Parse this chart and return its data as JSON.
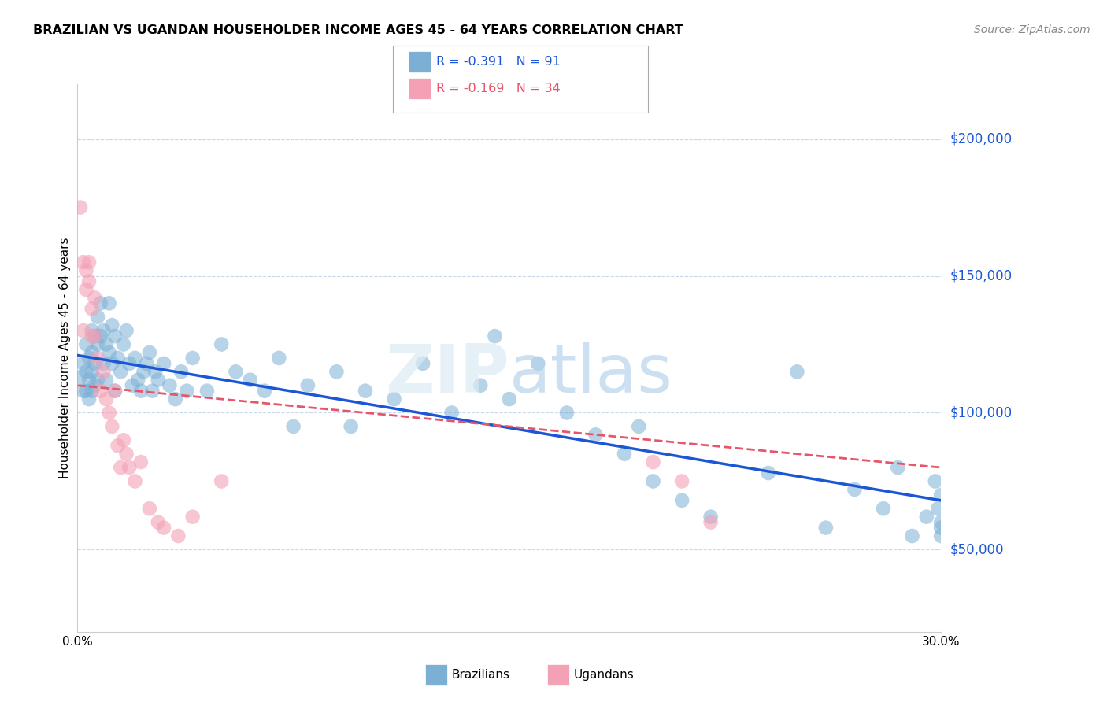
{
  "title": "BRAZILIAN VS UGANDAN HOUSEHOLDER INCOME AGES 45 - 64 YEARS CORRELATION CHART",
  "source": "Source: ZipAtlas.com",
  "ylabel": "Householder Income Ages 45 - 64 years",
  "xlim": [
    0.0,
    0.3
  ],
  "ylim": [
    20000,
    220000
  ],
  "yticks": [
    50000,
    100000,
    150000,
    200000
  ],
  "ytick_labels": [
    "$50,000",
    "$100,000",
    "$150,000",
    "$200,000"
  ],
  "xticks": [
    0.0,
    0.05,
    0.1,
    0.15,
    0.2,
    0.25,
    0.3
  ],
  "xtick_labels": [
    "0.0%",
    "",
    "",
    "",
    "",
    "",
    "30.0%"
  ],
  "blue_R": -0.391,
  "blue_N": 91,
  "pink_R": -0.169,
  "pink_N": 34,
  "blue_color": "#7BAfd4",
  "pink_color": "#F4A0B5",
  "blue_line_color": "#1a56d6",
  "pink_line_color": "#e8556a",
  "grid_color": "#c8d8e8",
  "background_color": "#ffffff",
  "blue_points_x": [
    0.001,
    0.002,
    0.002,
    0.003,
    0.003,
    0.003,
    0.004,
    0.004,
    0.004,
    0.005,
    0.005,
    0.005,
    0.005,
    0.006,
    0.006,
    0.006,
    0.007,
    0.007,
    0.007,
    0.008,
    0.008,
    0.009,
    0.009,
    0.01,
    0.01,
    0.011,
    0.011,
    0.012,
    0.012,
    0.013,
    0.013,
    0.014,
    0.015,
    0.016,
    0.017,
    0.018,
    0.019,
    0.02,
    0.021,
    0.022,
    0.023,
    0.024,
    0.025,
    0.026,
    0.027,
    0.028,
    0.03,
    0.032,
    0.034,
    0.036,
    0.038,
    0.04,
    0.045,
    0.05,
    0.055,
    0.06,
    0.065,
    0.07,
    0.075,
    0.08,
    0.09,
    0.095,
    0.1,
    0.11,
    0.12,
    0.13,
    0.14,
    0.145,
    0.15,
    0.16,
    0.17,
    0.18,
    0.19,
    0.195,
    0.2,
    0.21,
    0.22,
    0.24,
    0.25,
    0.26,
    0.27,
    0.28,
    0.285,
    0.29,
    0.295,
    0.298,
    0.299,
    0.3,
    0.3,
    0.3,
    0.3
  ],
  "blue_points_y": [
    113000,
    118000,
    108000,
    125000,
    115000,
    108000,
    120000,
    112000,
    105000,
    130000,
    122000,
    115000,
    108000,
    128000,
    118000,
    110000,
    135000,
    125000,
    112000,
    140000,
    128000,
    130000,
    118000,
    125000,
    112000,
    140000,
    122000,
    132000,
    118000,
    128000,
    108000,
    120000,
    115000,
    125000,
    130000,
    118000,
    110000,
    120000,
    112000,
    108000,
    115000,
    118000,
    122000,
    108000,
    115000,
    112000,
    118000,
    110000,
    105000,
    115000,
    108000,
    120000,
    108000,
    125000,
    115000,
    112000,
    108000,
    120000,
    95000,
    110000,
    115000,
    95000,
    108000,
    105000,
    118000,
    100000,
    110000,
    128000,
    105000,
    118000,
    100000,
    92000,
    85000,
    95000,
    75000,
    68000,
    62000,
    78000,
    115000,
    58000,
    72000,
    65000,
    80000,
    55000,
    62000,
    75000,
    65000,
    70000,
    55000,
    58000,
    60000
  ],
  "pink_points_x": [
    0.001,
    0.002,
    0.002,
    0.003,
    0.003,
    0.004,
    0.004,
    0.005,
    0.005,
    0.006,
    0.006,
    0.007,
    0.008,
    0.009,
    0.01,
    0.011,
    0.012,
    0.013,
    0.014,
    0.015,
    0.016,
    0.017,
    0.018,
    0.02,
    0.022,
    0.025,
    0.028,
    0.03,
    0.035,
    0.04,
    0.05,
    0.2,
    0.21,
    0.22
  ],
  "pink_points_y": [
    175000,
    155000,
    130000,
    152000,
    145000,
    155000,
    148000,
    138000,
    128000,
    142000,
    128000,
    120000,
    108000,
    115000,
    105000,
    100000,
    95000,
    108000,
    88000,
    80000,
    90000,
    85000,
    80000,
    75000,
    82000,
    65000,
    60000,
    58000,
    55000,
    62000,
    75000,
    82000,
    75000,
    60000
  ],
  "blue_line_x0": 0.0,
  "blue_line_y0": 121000,
  "blue_line_x1": 0.3,
  "blue_line_y1": 68000,
  "pink_line_x0": 0.0,
  "pink_line_y0": 110000,
  "pink_line_x1": 0.3,
  "pink_line_y1": 80000
}
